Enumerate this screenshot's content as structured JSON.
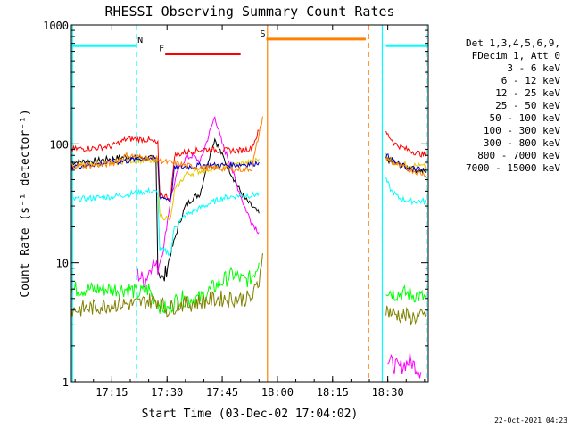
{
  "chart_data": {
    "type": "line",
    "title": "RHESSI Observing Summary Count Rates",
    "xlabel": "Start Time (03-Dec-02 17:04:02)",
    "ylabel": "Count Rate (s⁻¹ detector⁻¹)",
    "yscale": "log",
    "ylim": [
      1,
      1000
    ],
    "xlim_minutes": [
      4,
      101
    ],
    "x_ticks": [
      {
        "m": 15,
        "label": "17:15"
      },
      {
        "m": 30,
        "label": "17:30"
      },
      {
        "m": 45,
        "label": "17:45"
      },
      {
        "m": 60,
        "label": "18:00"
      },
      {
        "m": 75,
        "label": "18:15"
      },
      {
        "m": 90,
        "label": "18:30"
      }
    ],
    "y_ticks": [
      {
        "v": 1,
        "label": "1"
      },
      {
        "v": 10,
        "label": "10"
      },
      {
        "v": 100,
        "label": "100"
      },
      {
        "v": 1000,
        "label": "1000"
      }
    ],
    "legend_header": [
      "Det 1,3,4,5,6,9,",
      "FDecim 1, Att 0"
    ],
    "footer_date": "22-Oct-2021 04:23",
    "flag_bars": [
      {
        "label": "N",
        "color": "#00ffff",
        "segments": [
          [
            4,
            21.5
          ],
          [
            89.5,
            101
          ]
        ],
        "level": 670
      },
      {
        "label": "F",
        "color": "#ff0000",
        "segments": [
          [
            29.5,
            50
          ]
        ],
        "level": 570
      },
      {
        "label": "S",
        "color": "#ff8000",
        "segments": [
          [
            57,
            84
          ]
        ],
        "level": 760
      }
    ],
    "markers": [
      {
        "m": 57.3,
        "color": "#ff8000",
        "style": "solid"
      },
      {
        "m": 84.8,
        "color": "#ff8000",
        "style": "dashed"
      },
      {
        "m": 4.3,
        "color": "#00ffff",
        "style": "solid"
      },
      {
        "m": 21.7,
        "color": "#00ffff",
        "style": "dashed"
      },
      {
        "m": 88.5,
        "color": "#00ffff",
        "style": "solid"
      },
      {
        "m": 100.5,
        "color": "#00ffff",
        "style": "dashed"
      }
    ],
    "series": [
      {
        "name": "3 - 6 keV",
        "color": "#000000",
        "segments": [
          [
            [
              4,
              70
            ],
            [
              10,
              72
            ],
            [
              15,
              75
            ],
            [
              19,
              78
            ],
            [
              21.5,
              76
            ],
            [
              22,
              77
            ],
            [
              25,
              76
            ],
            [
              27,
              75
            ],
            [
              27.5,
              9
            ],
            [
              29,
              7
            ],
            [
              31,
              12
            ],
            [
              33,
              20
            ],
            [
              35,
              30
            ],
            [
              37,
              35
            ],
            [
              39,
              38
            ],
            [
              41,
              70
            ],
            [
              43,
              110
            ],
            [
              45,
              80
            ],
            [
              47,
              60
            ],
            [
              49,
              45
            ],
            [
              51,
              35
            ],
            [
              53,
              30
            ],
            [
              55,
              26
            ]
          ],
          [
            [
              89.5,
              75
            ],
            [
              92,
              68
            ],
            [
              95,
              64
            ],
            [
              98,
              60
            ],
            [
              100.5,
              58
            ]
          ]
        ]
      },
      {
        "name": "6 - 12 keV",
        "color": "#ff00ff",
        "segments": [
          [
            [
              22,
              8
            ],
            [
              24,
              7
            ],
            [
              26,
              10
            ],
            [
              27.5,
              9
            ],
            [
              29,
              13
            ],
            [
              31,
              35
            ],
            [
              33,
              60
            ],
            [
              35,
              75
            ],
            [
              37,
              80
            ],
            [
              39,
              70
            ],
            [
              41,
              110
            ],
            [
              43,
              170
            ],
            [
              45,
              100
            ],
            [
              47,
              70
            ],
            [
              49,
              45
            ],
            [
              51,
              30
            ],
            [
              53,
              22
            ],
            [
              55,
              18
            ]
          ],
          [
            [
              90,
              1.5
            ],
            [
              93,
              1.3
            ],
            [
              96,
              1.5
            ],
            [
              99,
              1.2
            ]
          ]
        ]
      },
      {
        "name": "12 - 25 keV",
        "color": "#00ff00",
        "segments": [
          [
            [
              4,
              6
            ],
            [
              10,
              6
            ],
            [
              15,
              6
            ],
            [
              20,
              6
            ],
            [
              22,
              5.5
            ],
            [
              25,
              6
            ],
            [
              27.5,
              4.5
            ],
            [
              30,
              4
            ],
            [
              33,
              5
            ],
            [
              36,
              5
            ],
            [
              39,
              5
            ],
            [
              42,
              6
            ],
            [
              45,
              7
            ],
            [
              48,
              8
            ],
            [
              51,
              7
            ],
            [
              53,
              7.5
            ],
            [
              55,
              10
            ]
          ],
          [
            [
              89.5,
              6
            ],
            [
              92,
              5.5
            ],
            [
              96,
              5.5
            ],
            [
              100.5,
              5
            ]
          ]
        ]
      },
      {
        "name": "25 - 50 keV",
        "color": "#00ffff",
        "segments": [
          [
            [
              4,
              34
            ],
            [
              10,
              35
            ],
            [
              15,
              36
            ],
            [
              20,
              38
            ],
            [
              22,
              39
            ],
            [
              25,
              40
            ],
            [
              27.5,
              39
            ],
            [
              28,
              13
            ],
            [
              31,
              12
            ],
            [
              32,
              20
            ],
            [
              35,
              25
            ],
            [
              40,
              30
            ],
            [
              45,
              35
            ],
            [
              50,
              37
            ],
            [
              53,
              37
            ],
            [
              55,
              38
            ]
          ],
          [
            [
              89.5,
              50
            ],
            [
              91,
              40
            ],
            [
              93,
              35
            ],
            [
              96,
              33
            ],
            [
              100.5,
              33
            ]
          ]
        ]
      },
      {
        "name": "50 - 100 keV",
        "color": "#e6c800",
        "segments": [
          [
            [
              4,
              65
            ],
            [
              10,
              67
            ],
            [
              15,
              70
            ],
            [
              19,
              72
            ],
            [
              22,
              73
            ],
            [
              25,
              72
            ],
            [
              27.5,
              70
            ],
            [
              28,
              25
            ],
            [
              31,
              23
            ],
            [
              32,
              40
            ],
            [
              35,
              55
            ],
            [
              40,
              60
            ],
            [
              45,
              65
            ],
            [
              50,
              68
            ],
            [
              53,
              70
            ],
            [
              55,
              75
            ]
          ],
          [
            [
              89.5,
              80
            ],
            [
              92,
              70
            ],
            [
              95,
              67
            ],
            [
              100.5,
              64
            ]
          ]
        ]
      },
      {
        "name": "100 - 300 keV",
        "color": "#ff0000",
        "segments": [
          [
            [
              4,
              90
            ],
            [
              10,
              92
            ],
            [
              15,
              96
            ],
            [
              19,
              110
            ],
            [
              22,
              110
            ],
            [
              25,
              108
            ],
            [
              27.5,
              100
            ],
            [
              28,
              38
            ],
            [
              31,
              35
            ],
            [
              32,
              80
            ],
            [
              35,
              85
            ],
            [
              40,
              90
            ],
            [
              45,
              88
            ],
            [
              50,
              88
            ],
            [
              53,
              92
            ],
            [
              55,
              130
            ]
          ],
          [
            [
              89.5,
              125
            ],
            [
              92,
              100
            ],
            [
              95,
              90
            ],
            [
              98,
              84
            ],
            [
              100.5,
              80
            ]
          ]
        ]
      },
      {
        "name": "300 - 800 keV",
        "color": "#0000cc",
        "segments": [
          [
            [
              4,
              65
            ],
            [
              10,
              67
            ],
            [
              15,
              70
            ],
            [
              19,
              72
            ],
            [
              22,
              75
            ],
            [
              25,
              76
            ],
            [
              27.5,
              75
            ],
            [
              28,
              36
            ],
            [
              31,
              34
            ],
            [
              32,
              62
            ],
            [
              35,
              64
            ],
            [
              40,
              66
            ],
            [
              45,
              66
            ],
            [
              50,
              67
            ],
            [
              53,
              68
            ],
            [
              55,
              70
            ]
          ],
          [
            [
              89.5,
              80
            ],
            [
              92,
              70
            ],
            [
              95,
              63
            ],
            [
              100.5,
              60
            ]
          ]
        ]
      },
      {
        "name": "800 - 7000 keV",
        "color": "#ff8000",
        "segments": [
          [
            [
              4,
              65
            ],
            [
              10,
              66
            ],
            [
              15,
              68
            ],
            [
              19,
              80
            ],
            [
              22,
              78
            ],
            [
              25,
              76
            ],
            [
              27.5,
              74
            ],
            [
              30,
              70
            ],
            [
              33,
              68
            ],
            [
              36,
              65
            ],
            [
              40,
              63
            ],
            [
              45,
              62
            ],
            [
              50,
              61
            ],
            [
              53,
              62
            ],
            [
              55,
              120
            ],
            [
              56,
              170
            ]
          ],
          [
            [
              89.5,
              75
            ],
            [
              92,
              68
            ],
            [
              95,
              62
            ],
            [
              100.5,
              55
            ]
          ]
        ]
      },
      {
        "name": "7000 - 15000 keV",
        "color": "#808000",
        "segments": [
          [
            [
              4,
              4
            ],
            [
              10,
              4.2
            ],
            [
              15,
              4.5
            ],
            [
              20,
              4.5
            ],
            [
              22,
              4.5
            ],
            [
              25,
              4.8
            ],
            [
              27.5,
              4.8
            ],
            [
              30,
              4
            ],
            [
              33,
              4.5
            ],
            [
              36,
              4.5
            ],
            [
              40,
              4.8
            ],
            [
              45,
              5
            ],
            [
              50,
              5
            ],
            [
              53,
              5
            ],
            [
              55,
              7
            ],
            [
              56,
              12
            ]
          ],
          [
            [
              89.5,
              4
            ],
            [
              92,
              3.7
            ],
            [
              96,
              3.5
            ],
            [
              100.5,
              3.5
            ]
          ]
        ]
      }
    ]
  }
}
